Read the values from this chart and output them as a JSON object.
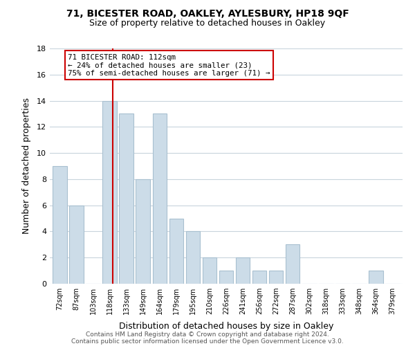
{
  "title": "71, BICESTER ROAD, OAKLEY, AYLESBURY, HP18 9QF",
  "subtitle": "Size of property relative to detached houses in Oakley",
  "xlabel": "Distribution of detached houses by size in Oakley",
  "ylabel": "Number of detached properties",
  "bar_color": "#ccdce8",
  "bar_edge_color": "#a8c0d0",
  "categories": [
    "72sqm",
    "87sqm",
    "103sqm",
    "118sqm",
    "133sqm",
    "149sqm",
    "164sqm",
    "179sqm",
    "195sqm",
    "210sqm",
    "226sqm",
    "241sqm",
    "256sqm",
    "272sqm",
    "287sqm",
    "302sqm",
    "318sqm",
    "333sqm",
    "348sqm",
    "364sqm",
    "379sqm"
  ],
  "values": [
    9,
    6,
    0,
    14,
    13,
    8,
    13,
    5,
    4,
    2,
    1,
    2,
    1,
    1,
    3,
    0,
    0,
    0,
    0,
    1,
    0
  ],
  "ylim": [
    0,
    18
  ],
  "yticks": [
    0,
    2,
    4,
    6,
    8,
    10,
    12,
    14,
    16,
    18
  ],
  "annotation_text": "71 BICESTER ROAD: 112sqm\n← 24% of detached houses are smaller (23)\n75% of semi-detached houses are larger (71) →",
  "annotation_box_color": "#ffffff",
  "annotation_box_edge": "#cc0000",
  "property_line_color": "#cc0000",
  "footer1": "Contains HM Land Registry data © Crown copyright and database right 2024.",
  "footer2": "Contains public sector information licensed under the Open Government Licence v3.0.",
  "background_color": "#ffffff",
  "grid_color": "#c8d4dc"
}
